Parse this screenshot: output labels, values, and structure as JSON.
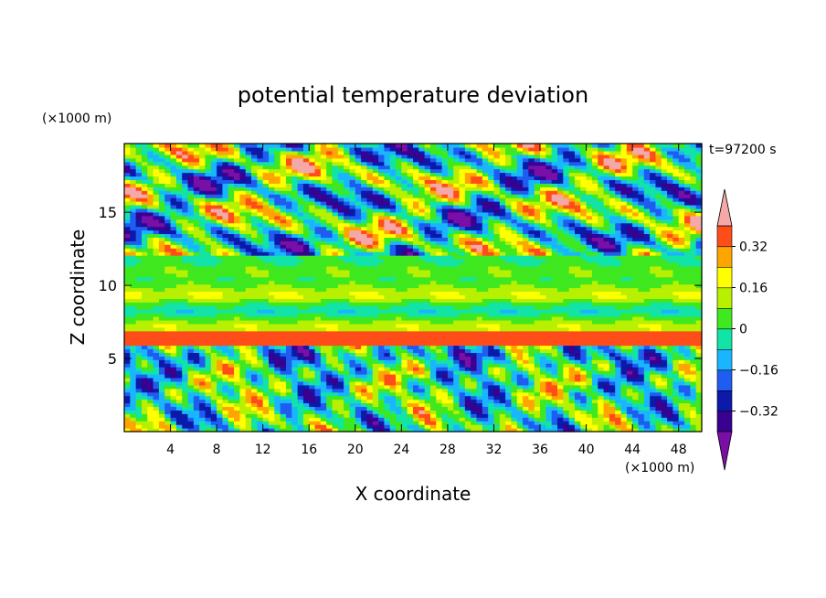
{
  "chart_data": {
    "type": "heatmap",
    "title": "potential temperature deviation",
    "xlabel": "X coordinate",
    "ylabel": "Z coordinate",
    "x_unit": "(×1000 m)",
    "y_unit": "(×1000 m)",
    "time_label": "t=97200 s",
    "xlim": [
      0,
      50
    ],
    "ylim": [
      0,
      19.7
    ],
    "x_ticks": [
      4,
      8,
      12,
      16,
      20,
      24,
      28,
      32,
      36,
      40,
      44,
      48
    ],
    "y_ticks": [
      5,
      10,
      15
    ],
    "colorbar": {
      "levels": [
        -0.4,
        -0.32,
        -0.24,
        -0.16,
        -0.08,
        0,
        0.08,
        0.16,
        0.24,
        0.32,
        0.4
      ],
      "tick_labels": [
        "0.32",
        "0.16",
        "0",
        "−0.16",
        "−0.32"
      ],
      "tick_values": [
        0.32,
        0.16,
        0,
        -0.16,
        -0.32
      ],
      "colors": [
        "#7a0fa8",
        "#3a0090",
        "#0b1aa8",
        "#1f5cf0",
        "#19b6ff",
        "#12e3a6",
        "#3fe81f",
        "#b7f000",
        "#ffff00",
        "#ffa500",
        "#ff4d1a",
        "#f5a8a8"
      ],
      "extend": "both"
    },
    "field_description_bands": [
      {
        "z_range": [
          0,
          6
        ],
        "pattern": "convective plumes"
      },
      {
        "z_range": [
          6,
          6.8
        ],
        "value": 0.35
      },
      {
        "z_range": [
          6.8,
          12
        ],
        "value": 0.05
      },
      {
        "z_range": [
          12,
          20
        ],
        "pattern": "turbulent streaks"
      }
    ]
  }
}
